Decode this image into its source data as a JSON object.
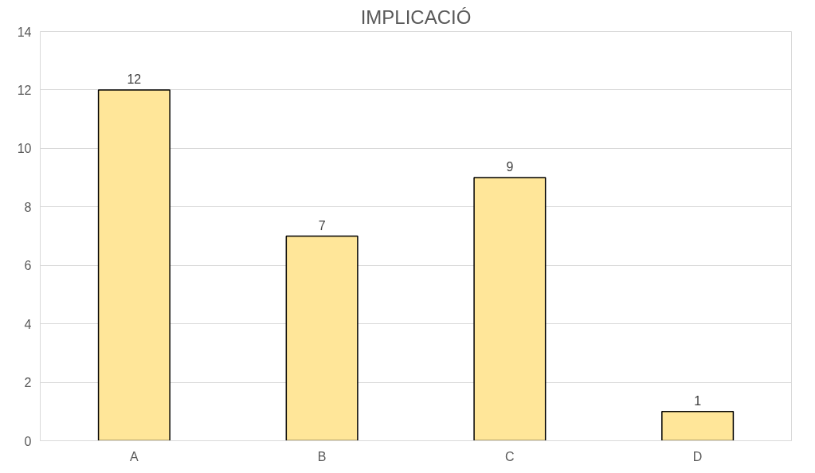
{
  "chart_data": {
    "type": "bar",
    "title": "IMPLICACIÓ",
    "categories": [
      "A",
      "B",
      "C",
      "D"
    ],
    "values": [
      12,
      7,
      9,
      1
    ],
    "color": "#ffe699",
    "ylim": [
      0,
      14
    ],
    "yticks": [
      0,
      2,
      4,
      6,
      8,
      10,
      12,
      14
    ],
    "grid": "y",
    "data_labels": true
  }
}
